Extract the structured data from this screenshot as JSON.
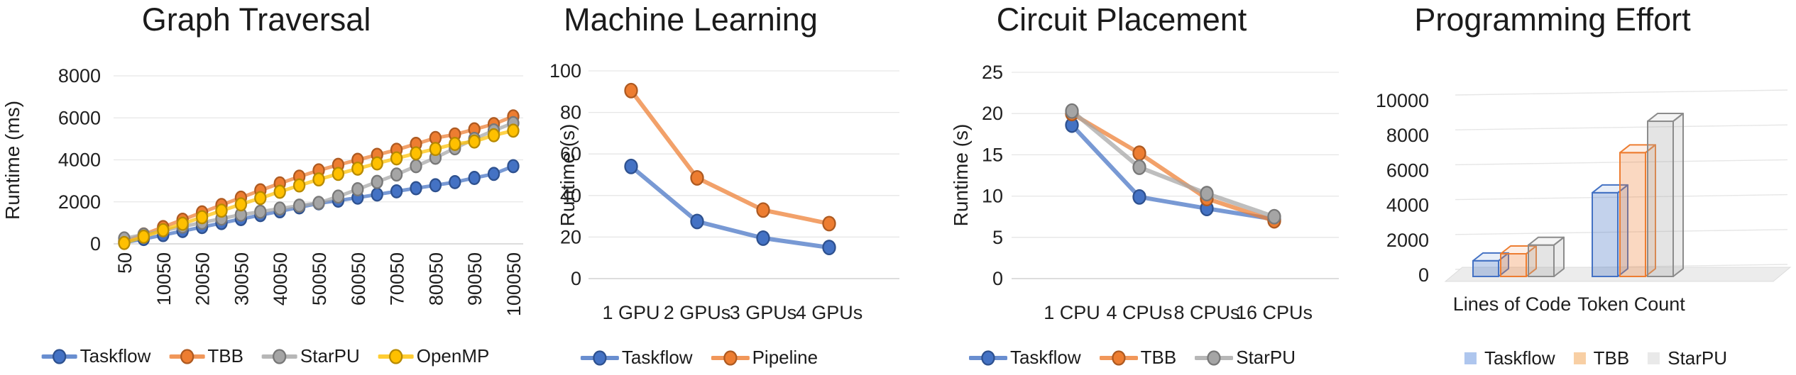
{
  "colors": {
    "background": "#ffffff",
    "text": "#1f1f1f",
    "gridline": "#e6e6e6",
    "axis_line": "#d2d2d2",
    "taskflow": "#4472C4",
    "tbb": "#ED7D31",
    "starpu": "#A5A5A5",
    "openmp": "#FFC000"
  },
  "chart_data": [
    {
      "type": "line",
      "title": "Graph Traversal",
      "ylabel": "Runtime (ms)",
      "ylim": [
        0,
        8000
      ],
      "yticks": [
        0,
        2000,
        4000,
        6000,
        8000
      ],
      "grid": true,
      "legend_position": "bottom",
      "x": [
        50,
        5050,
        10050,
        15050,
        20050,
        25050,
        30050,
        35050,
        40050,
        45050,
        50050,
        55050,
        60050,
        65050,
        70050,
        75050,
        80050,
        85050,
        90050,
        95050,
        100050
      ],
      "x_tick_labels": [
        "50",
        "10050",
        "20050",
        "30050",
        "40050",
        "50050",
        "60050",
        "70050",
        "80050",
        "90050",
        "100050"
      ],
      "series": [
        {
          "name": "Taskflow",
          "color": "#4472C4",
          "edge": "#2E518F",
          "values": [
            60,
            230,
            420,
            610,
            800,
            990,
            1180,
            1370,
            1550,
            1740,
            1930,
            2060,
            2200,
            2350,
            2500,
            2650,
            2790,
            2940,
            3140,
            3330,
            3700
          ]
        },
        {
          "name": "TBB",
          "color": "#ED7D31",
          "edge": "#AE5A21",
          "values": [
            110,
            450,
            800,
            1150,
            1500,
            1850,
            2200,
            2550,
            2880,
            3200,
            3500,
            3760,
            4000,
            4240,
            4480,
            4760,
            5040,
            5210,
            5450,
            5700,
            6070
          ]
        },
        {
          "name": "StarPU",
          "color": "#A5A5A5",
          "edge": "#787878",
          "values": [
            260,
            440,
            630,
            820,
            1010,
            1200,
            1390,
            1530,
            1680,
            1820,
            1950,
            2250,
            2600,
            2950,
            3300,
            3700,
            4100,
            4550,
            5000,
            5400,
            5750
          ]
        },
        {
          "name": "OpenMP",
          "color": "#FFC000",
          "edge": "#B78A00",
          "values": [
            40,
            340,
            650,
            960,
            1270,
            1580,
            1880,
            2180,
            2480,
            2780,
            3070,
            3330,
            3580,
            3830,
            4070,
            4310,
            4520,
            4760,
            4870,
            5170,
            5390
          ]
        }
      ]
    },
    {
      "type": "line",
      "title": "Machine Learning",
      "ylabel": "Runtime (s)",
      "ylim": [
        0,
        100
      ],
      "yticks": [
        0,
        20,
        40,
        60,
        80,
        100
      ],
      "grid": true,
      "legend_position": "bottom",
      "categories": [
        "1 GPU",
        "2 GPUs",
        "3 GPUs",
        "4 GPUs"
      ],
      "series": [
        {
          "name": "Taskflow",
          "color": "#4472C4",
          "edge": "#2E518F",
          "values": [
            54,
            27.5,
            19.5,
            15
          ]
        },
        {
          "name": "Pipeline",
          "color": "#ED7D31",
          "edge": "#AE5A21",
          "values": [
            90.5,
            48.5,
            33,
            26.5
          ]
        }
      ]
    },
    {
      "type": "line",
      "title": "Circuit Placement",
      "ylabel": "Runtime (s)",
      "ylim": [
        0,
        25
      ],
      "yticks": [
        0,
        5,
        10,
        15,
        20,
        25
      ],
      "grid": true,
      "legend_position": "bottom",
      "categories": [
        "1 CPU",
        "4 CPUs",
        "8 CPUs",
        "16 CPUs"
      ],
      "series": [
        {
          "name": "Taskflow",
          "color": "#4472C4",
          "edge": "#2E518F",
          "values": [
            18.6,
            9.9,
            8.5,
            7.2
          ]
        },
        {
          "name": "TBB",
          "color": "#ED7D31",
          "edge": "#AE5A21",
          "values": [
            20.0,
            15.2,
            9.7,
            7.0
          ]
        },
        {
          "name": "StarPU",
          "color": "#A5A5A5",
          "edge": "#787878",
          "values": [
            20.3,
            13.5,
            10.3,
            7.5
          ]
        }
      ]
    },
    {
      "type": "bar3d",
      "title": "Programming Effort",
      "ylim": [
        0,
        10000
      ],
      "yticks": [
        0,
        2000,
        4000,
        6000,
        8000,
        10000
      ],
      "grid": true,
      "legend_position": "bottom",
      "categories": [
        "Lines of Code",
        "Token Count"
      ],
      "series": [
        {
          "name": "Taskflow",
          "edge": "#4472C4",
          "fill_front": "rgba(68,114,196,0.32)",
          "fill_top": "rgba(68,114,196,0.12)",
          "fill_side": "rgba(68,114,196,0.22)",
          "legend_fill": "#AEC6EE",
          "values": [
            900,
            4800
          ]
        },
        {
          "name": "TBB",
          "edge": "#ED7D31",
          "fill_front": "rgba(237,125,49,0.30)",
          "fill_top": "rgba(237,125,49,0.12)",
          "fill_side": "rgba(237,125,49,0.20)",
          "legend_fill": "#F8CFA4",
          "values": [
            1300,
            7100
          ]
        },
        {
          "name": "StarPU",
          "edge": "#8C8C8C",
          "fill_front": "rgba(165,165,165,0.30)",
          "fill_top": "rgba(165,165,165,0.12)",
          "fill_side": "rgba(165,165,165,0.22)",
          "legend_fill": "#E9E9E9",
          "values": [
            1800,
            8900
          ]
        }
      ]
    }
  ]
}
